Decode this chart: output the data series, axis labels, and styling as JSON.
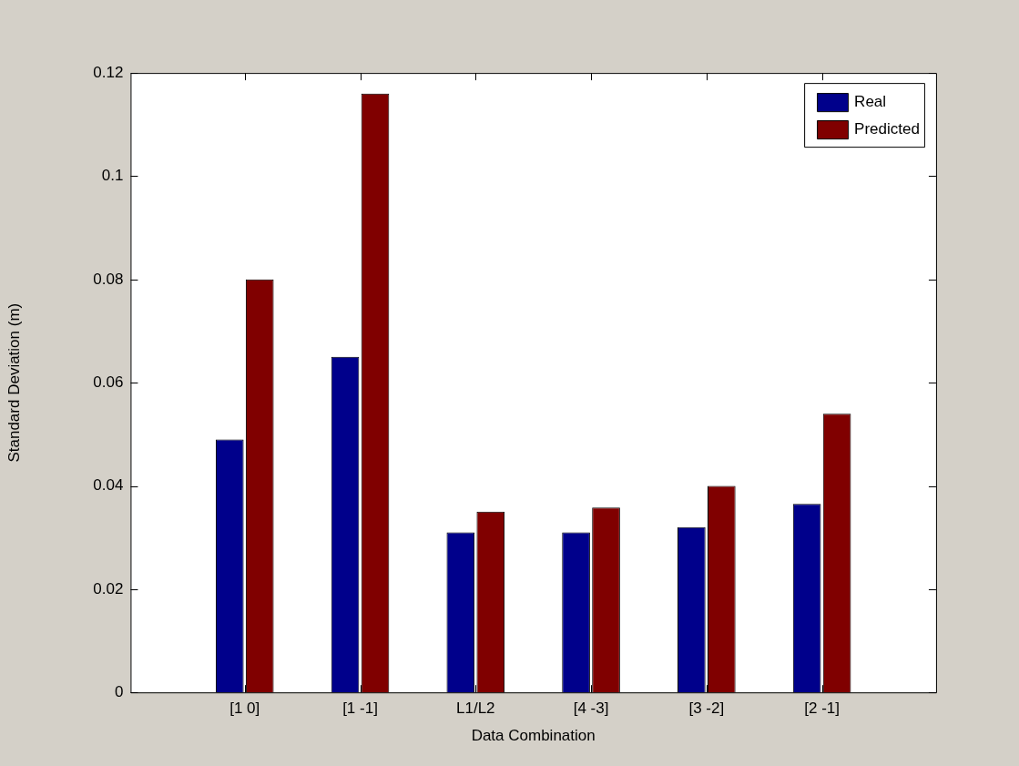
{
  "chart_data": {
    "type": "bar",
    "xlabel": "Data Combination",
    "ylabel": "Standard Deviation (m)",
    "categories": [
      "[1 0]",
      "[1 -1]",
      "L1/L2",
      "[4 -3]",
      "[3 -2]",
      "[2 -1]"
    ],
    "series": [
      {
        "name": "Real",
        "color": "#00008b",
        "values": [
          0.049,
          0.065,
          0.031,
          0.031,
          0.032,
          0.0365
        ]
      },
      {
        "name": "Predicted",
        "color": "#800000",
        "values": [
          0.08,
          0.116,
          0.035,
          0.0358,
          0.04,
          0.054
        ]
      }
    ],
    "ylim": [
      0,
      0.12
    ],
    "yticks": [
      0,
      0.02,
      0.04,
      0.06,
      0.08,
      0.1,
      0.12
    ],
    "grid": false,
    "legend": "top right"
  }
}
